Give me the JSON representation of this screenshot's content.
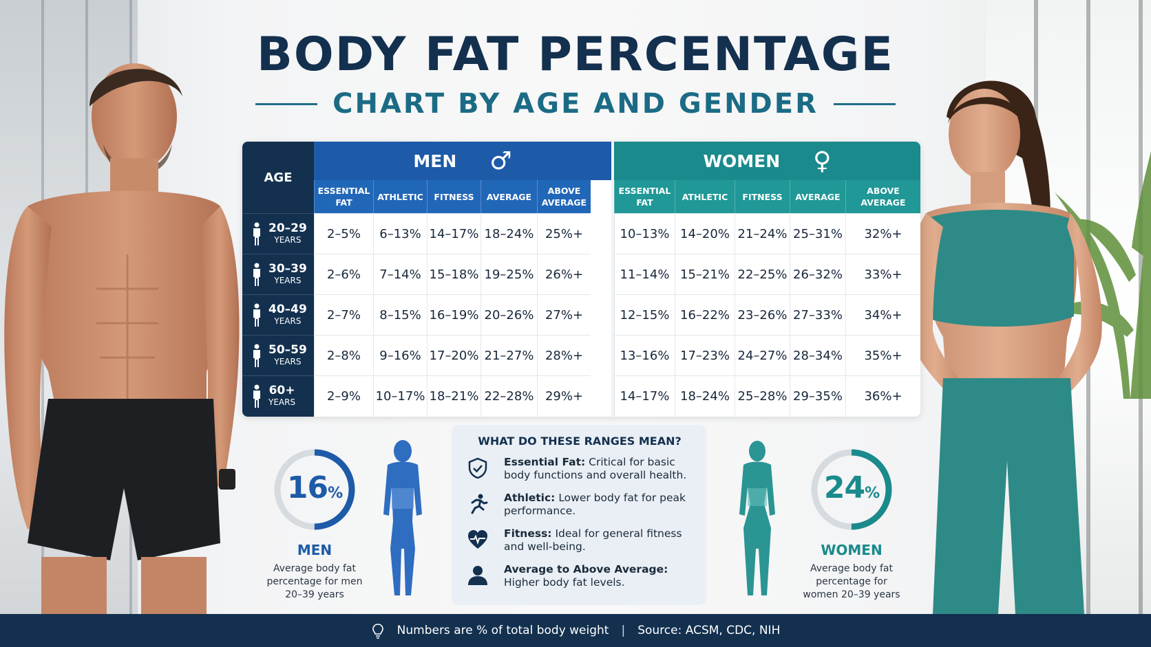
{
  "title": "BODY FAT PERCENTAGE",
  "subtitle": "CHART BY AGE AND GENDER",
  "table": {
    "age_header": "AGE",
    "men_label": "MEN",
    "women_label": "WOMEN",
    "male_symbol": "♂",
    "female_symbol": "♀",
    "categories": [
      "ESSENTIAL FAT",
      "ATHLETIC",
      "FITNESS",
      "AVERAGE",
      "ABOVE AVERAGE"
    ],
    "rows": [
      {
        "age": "20–29",
        "unit": "YEARS",
        "men": [
          "2–5%",
          "6–13%",
          "14–17%",
          "18–24%",
          "25%+"
        ],
        "women": [
          "10–13%",
          "14–20%",
          "21–24%",
          "25–31%",
          "32%+"
        ]
      },
      {
        "age": "30–39",
        "unit": "YEARS",
        "men": [
          "2–6%",
          "7–14%",
          "15–18%",
          "19–25%",
          "26%+"
        ],
        "women": [
          "11–14%",
          "15–21%",
          "22–25%",
          "26–32%",
          "33%+"
        ]
      },
      {
        "age": "40–49",
        "unit": "YEARS",
        "men": [
          "2–7%",
          "8–15%",
          "16–19%",
          "20–26%",
          "27%+"
        ],
        "women": [
          "12–15%",
          "16–22%",
          "23–26%",
          "27–33%",
          "34%+"
        ]
      },
      {
        "age": "50–59",
        "unit": "YEARS",
        "men": [
          "2–8%",
          "9–16%",
          "17–20%",
          "21–27%",
          "28%+"
        ],
        "women": [
          "13–16%",
          "17–23%",
          "24–27%",
          "28–34%",
          "35%+"
        ]
      },
      {
        "age": "60+",
        "unit": "YEARS",
        "men": [
          "2–9%",
          "10–17%",
          "18–21%",
          "22–28%",
          "29%+"
        ],
        "women": [
          "14–17%",
          "18–24%",
          "25–28%",
          "29–35%",
          "36%+"
        ]
      }
    ]
  },
  "men_stat": {
    "value": "16",
    "unit": "%",
    "label": "MEN",
    "desc": "Average body fat percentage for men 20–39 years",
    "ring_fraction": 0.5,
    "color": "#1d5aa8"
  },
  "women_stat": {
    "value": "24",
    "unit": "%",
    "label": "WOMEN",
    "desc": "Average body fat percentage for women 20–39 years",
    "ring_fraction": 0.5,
    "color": "#1a8a8c"
  },
  "info": {
    "title": "WHAT DO THESE RANGES MEAN?",
    "items": [
      {
        "icon": "shield-check-icon",
        "term": "Essential Fat:",
        "text": "Critical for basic body functions and overall health."
      },
      {
        "icon": "runner-icon",
        "term": "Athletic:",
        "text": "Lower body fat for peak performance."
      },
      {
        "icon": "heart-pulse-icon",
        "term": "Fitness:",
        "text": "Ideal for general fitness and well-being."
      },
      {
        "icon": "person-icon",
        "term": "Average to Above Average:",
        "text": "Higher body fat levels."
      }
    ]
  },
  "footer": {
    "note": "Numbers are % of total body weight",
    "separator": "|",
    "source": "Source: ACSM, CDC, NIH"
  },
  "colors": {
    "navy": "#13304f",
    "men_blue": "#1d5aa8",
    "women_teal": "#1a8a8c"
  }
}
